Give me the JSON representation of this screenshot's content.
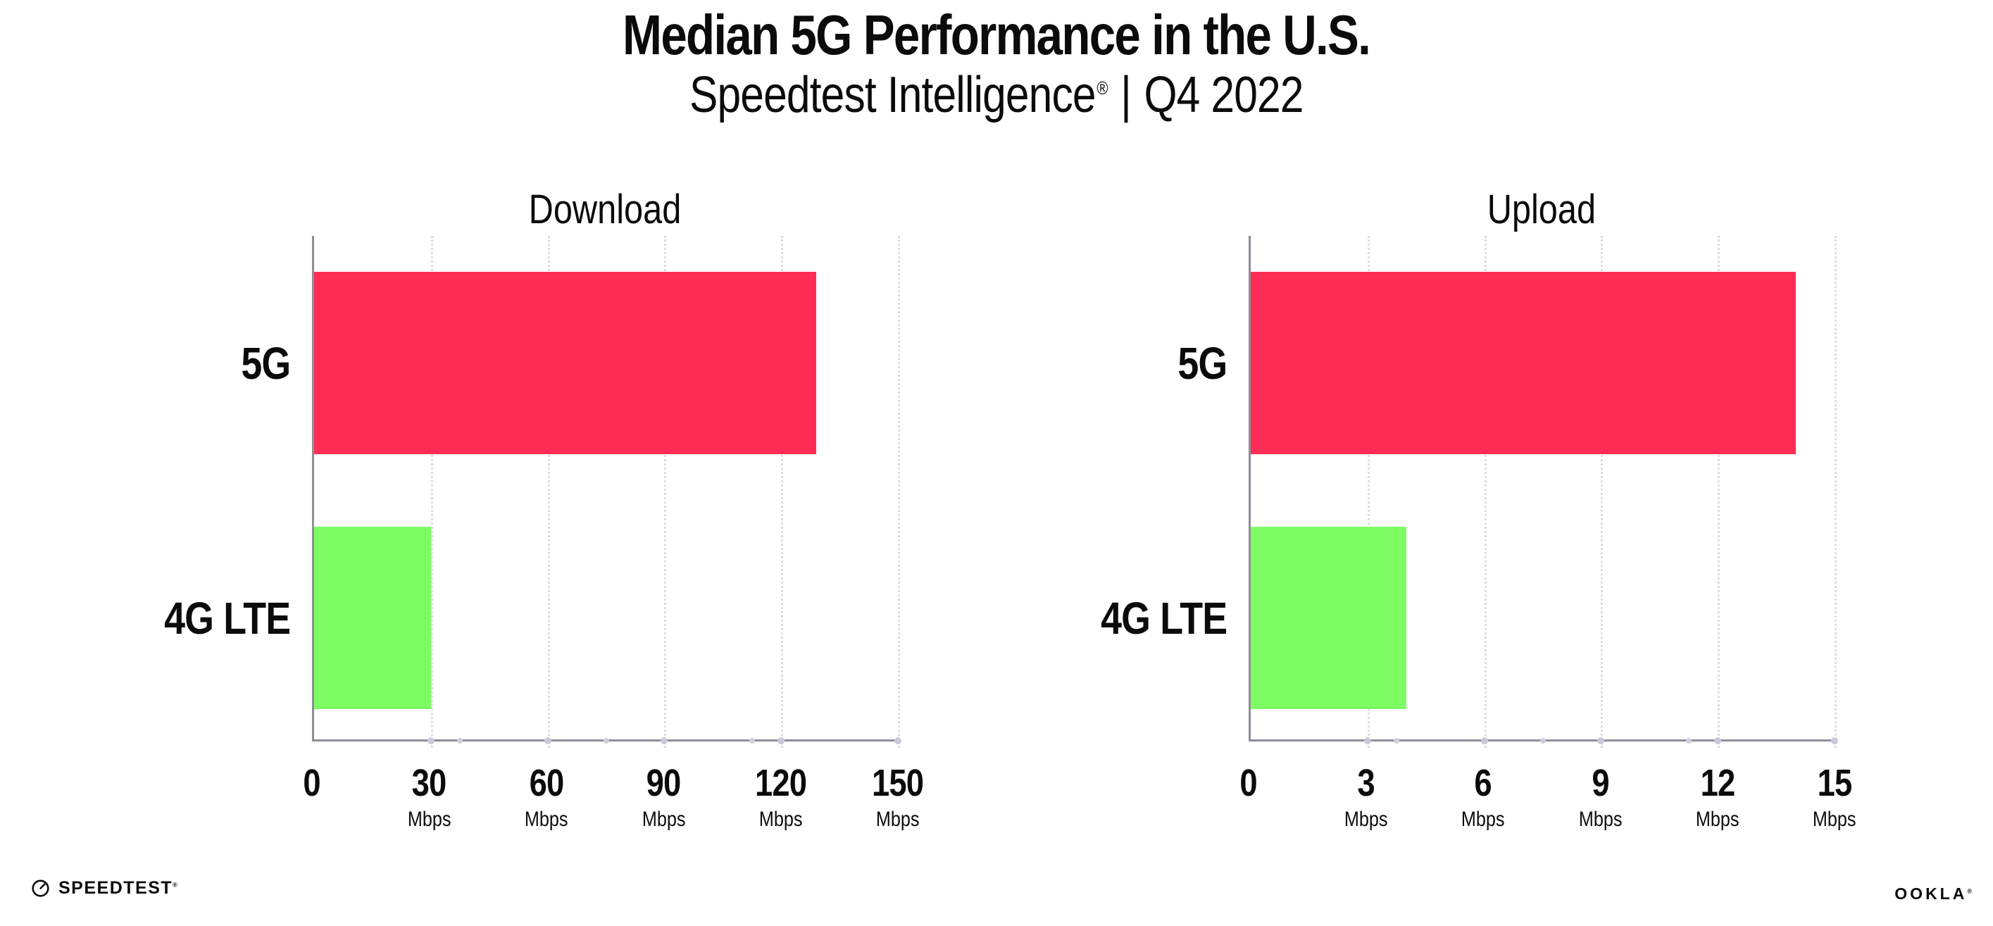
{
  "header": {
    "title": "Median 5G Performance in the U.S.",
    "subtitle_brand": "Speedtest Intelligence",
    "subtitle_reg": "®",
    "subtitle_sep": "|",
    "subtitle_period": "Q4 2022"
  },
  "chart_data": [
    {
      "type": "bar",
      "orientation": "horizontal",
      "title": "Download",
      "categories": [
        "5G",
        "4G LTE"
      ],
      "values": [
        129,
        30
      ],
      "unit": "Mbps",
      "xlim": [
        0,
        150
      ],
      "xticks": [
        0,
        30,
        60,
        90,
        120,
        150
      ],
      "xtick_unit_label": "Mbps",
      "bar_colors": [
        "#FF2D55",
        "#7DFC64"
      ],
      "grid": "vertical-dotted",
      "legend": "none"
    },
    {
      "type": "bar",
      "orientation": "horizontal",
      "title": "Upload",
      "categories": [
        "5G",
        "4G LTE"
      ],
      "values": [
        14,
        4
      ],
      "unit": "Mbps",
      "xlim": [
        0,
        15
      ],
      "xticks": [
        0,
        3,
        6,
        9,
        12,
        15
      ],
      "xtick_unit_label": "Mbps",
      "bar_colors": [
        "#FF2D55",
        "#7DFC64"
      ],
      "grid": "vertical-dotted",
      "legend": "none"
    }
  ],
  "footer": {
    "speedtest_text": "SPEEDTEST",
    "speedtest_mark": "®",
    "ookla_text": "OOKLA",
    "ookla_mark": "®"
  },
  "colors": {
    "bar_5g": "#FF2D55",
    "bar_4g_lte": "#7DFC64",
    "axis": "#8E8E97",
    "gridline": "#DBDBE8",
    "tick_dot": "#C9C9DA",
    "text": "#0B0B0B",
    "background": "#FFFFFF"
  }
}
